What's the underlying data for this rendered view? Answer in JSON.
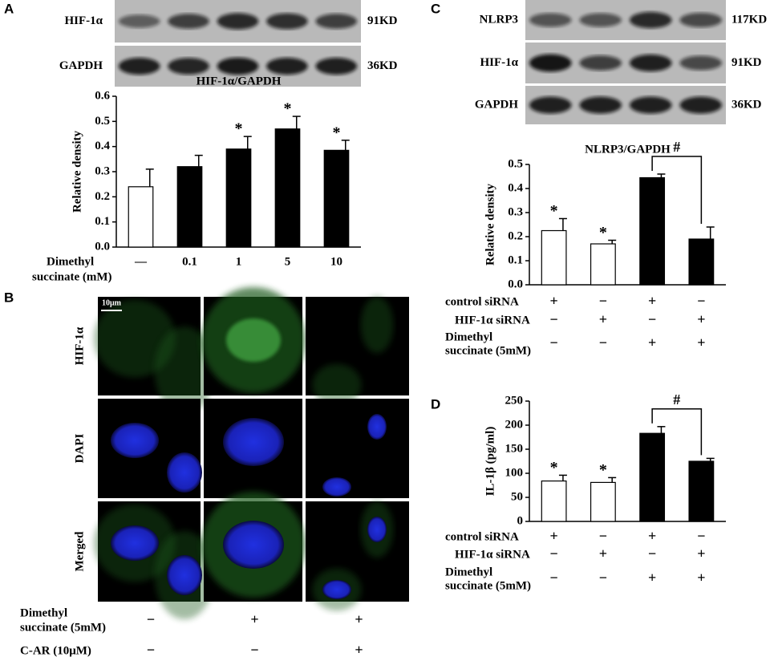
{
  "panel_labels": [
    "A",
    "B",
    "C",
    "D"
  ],
  "blot_a": {
    "rows": [
      {
        "label": "HIF-1α",
        "size": "91KD"
      },
      {
        "label": "GAPDH",
        "size": "36KD"
      }
    ]
  },
  "blot_c": {
    "rows": [
      {
        "label": "NLRP3",
        "size": "117KD"
      },
      {
        "label": "HIF-1α",
        "size": "91KD"
      },
      {
        "label": "GAPDH",
        "size": "36KD"
      }
    ]
  },
  "microscopy": {
    "scale_bar": "10μm",
    "rows": [
      "HIF-1α",
      "DAPI",
      "Merged"
    ],
    "conditions": [
      {
        "label": [
          "Dimethyl",
          "succinate (5mM)"
        ],
        "marks": [
          "−",
          "+",
          "+"
        ]
      },
      {
        "label": [
          "C-AR (10μM)"
        ],
        "marks": [
          "−",
          "−",
          "+"
        ]
      }
    ]
  },
  "chart_data": [
    {
      "type": "bar",
      "title": "HIF-1α/GAPDH",
      "y_label": "Relative density",
      "x_label": [
        "Dimethyl",
        "succinate (mM)"
      ],
      "categories": [
        "—",
        "0.1",
        "1",
        "5",
        "10"
      ],
      "values": [
        0.24,
        0.32,
        0.39,
        0.47,
        0.385
      ],
      "errors": [
        0.07,
        0.045,
        0.05,
        0.05,
        0.04
      ],
      "colors": [
        "#ffffff",
        "#000000",
        "#000000",
        "#000000",
        "#000000"
      ],
      "annotations": [
        null,
        null,
        "*",
        "*",
        "*"
      ],
      "ylim": [
        0,
        0.6
      ],
      "yticks": [
        {
          "value": 0,
          "label": "0.0"
        },
        0.1,
        0.2,
        0.3,
        0.4,
        0.5,
        0.6
      ]
    },
    {
      "type": "bar",
      "title": "NLRP3/GAPDH",
      "y_label": "Relative density",
      "values": [
        0.225,
        0.17,
        0.445,
        0.19
      ],
      "errors": [
        0.05,
        0.015,
        0.015,
        0.05
      ],
      "colors": [
        "#ffffff",
        "#ffffff",
        "#000000",
        "#000000"
      ],
      "annotations": [
        "*",
        "*",
        null,
        null
      ],
      "bracket": {
        "between": [
          2,
          3
        ],
        "label": "#"
      },
      "conditions": [
        {
          "label": [
            "control siRNA"
          ],
          "marks": [
            "+",
            "−",
            "+",
            "−"
          ]
        },
        {
          "label": [
            "HIF-1α siRNA"
          ],
          "marks": [
            "−",
            "+",
            "−",
            "+"
          ]
        },
        {
          "label": [
            "Dimethyl",
            "succinate (5mM)"
          ],
          "marks": [
            "−",
            "−",
            "+",
            "+"
          ]
        }
      ],
      "ylim": [
        0,
        0.5
      ],
      "yticks": [
        {
          "value": 0,
          "label": "0.0"
        },
        0.1,
        0.2,
        0.3,
        0.4,
        0.5
      ]
    },
    {
      "type": "bar",
      "y_label": "IL-1β (pg/ml)",
      "values": [
        84,
        81,
        183,
        125
      ],
      "errors": [
        12,
        10,
        14,
        6
      ],
      "colors": [
        "#ffffff",
        "#ffffff",
        "#000000",
        "#000000"
      ],
      "annotations": [
        "*",
        "*",
        null,
        null
      ],
      "bracket": {
        "between": [
          2,
          3
        ],
        "label": "#"
      },
      "conditions": [
        {
          "label": [
            "control siRNA"
          ],
          "marks": [
            "+",
            "−",
            "+",
            "−"
          ]
        },
        {
          "label": [
            "HIF-1α siRNA"
          ],
          "marks": [
            "−",
            "+",
            "−",
            "+"
          ]
        },
        {
          "label": [
            "Dimethyl",
            "succinate (5mM)"
          ],
          "marks": [
            "−",
            "−",
            "+",
            "+"
          ]
        }
      ],
      "ylim": [
        0,
        250
      ],
      "yticks": [
        0,
        50,
        100,
        150,
        200,
        250
      ]
    }
  ]
}
